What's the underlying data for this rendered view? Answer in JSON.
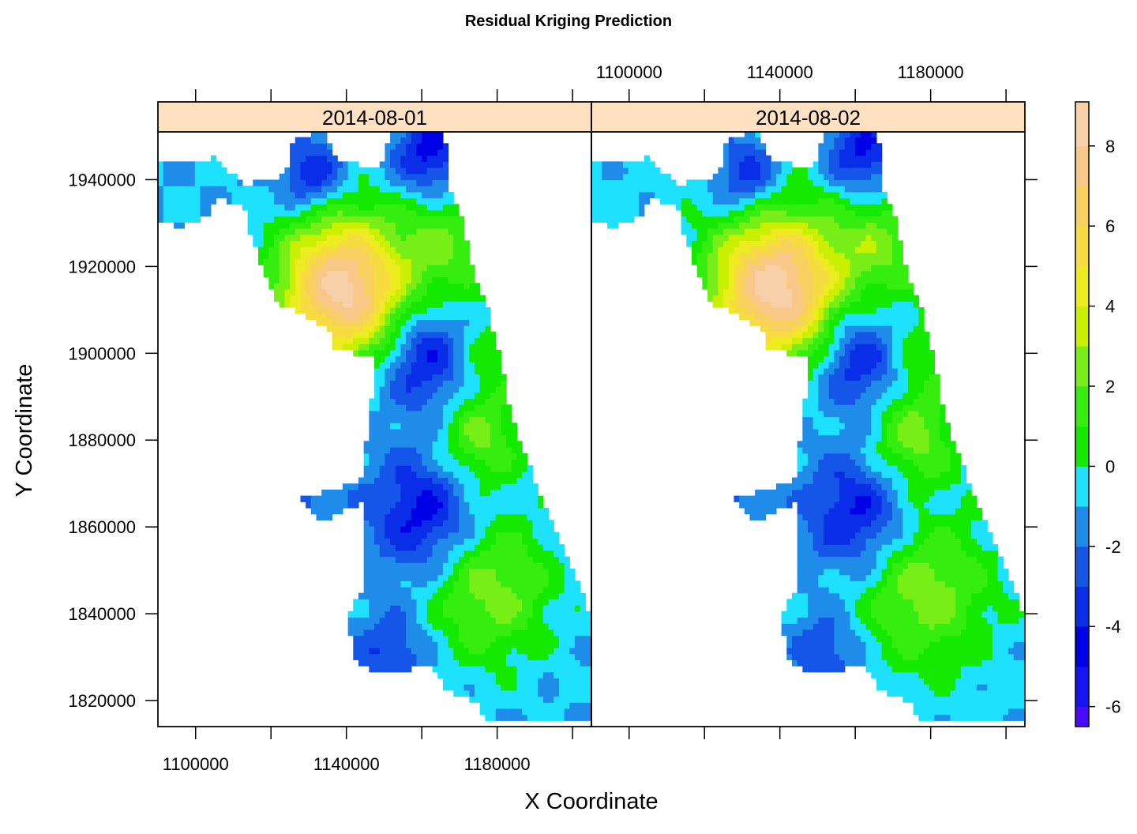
{
  "chart_data": {
    "type": "heatmap",
    "title": "Residual Kriging Prediction",
    "xlabel": "X Coordinate",
    "ylabel": "Y Coordinate",
    "xlim": [
      1090000,
      1205000
    ],
    "ylim": [
      1814000,
      1951000
    ],
    "x_ticks": [
      1100000,
      1140000,
      1180000
    ],
    "x_tick_labels": [
      "1100000",
      "1140000",
      "1180000"
    ],
    "y_ticks": [
      1820000,
      1840000,
      1860000,
      1880000,
      1900000,
      1920000,
      1940000
    ],
    "y_tick_labels": [
      "1820000",
      "1840000",
      "1860000",
      "1880000",
      "1900000",
      "1920000",
      "1940000"
    ],
    "panels": [
      {
        "label": "2014-08-01"
      },
      {
        "label": "2014-08-02"
      }
    ],
    "strip_color": "#ffe0c0",
    "colorbar": {
      "zlim": [
        -6.5,
        9.1
      ],
      "ticks": [
        -6,
        -4,
        -2,
        0,
        2,
        4,
        6,
        8
      ],
      "tick_labels": [
        "-6",
        "-4",
        "-2",
        "0",
        "2",
        "4",
        "6",
        "8"
      ],
      "levels": [
        {
          "from": -6.5,
          "to": -6,
          "color": "#4a0aff"
        },
        {
          "from": -6,
          "to": -5,
          "color": "#1414f4"
        },
        {
          "from": -5,
          "to": -4,
          "color": "#0000e6"
        },
        {
          "from": -4,
          "to": -3,
          "color": "#0a2ee8"
        },
        {
          "from": -3,
          "to": -2,
          "color": "#1556e8"
        },
        {
          "from": -2,
          "to": -1,
          "color": "#1e8ce8"
        },
        {
          "from": -1,
          "to": 0,
          "color": "#1ee0ff"
        },
        {
          "from": 0,
          "to": 1,
          "color": "#14ea00"
        },
        {
          "from": 1,
          "to": 2,
          "color": "#35ee10"
        },
        {
          "from": 2,
          "to": 3,
          "color": "#78ee18"
        },
        {
          "from": 3,
          "to": 4,
          "color": "#c8f000"
        },
        {
          "from": 4,
          "to": 5,
          "color": "#ecec20"
        },
        {
          "from": 5,
          "to": 6,
          "color": "#f6dc40"
        },
        {
          "from": 6,
          "to": 7,
          "color": "#f8d060"
        },
        {
          "from": 7,
          "to": 8,
          "color": "#f8c888"
        },
        {
          "from": 8,
          "to": 9.1,
          "color": "#f8d0a8"
        }
      ]
    },
    "residual_centers": [
      {
        "x": 1139000,
        "y": 1915000,
        "value": 8.5,
        "spread": 12000
      },
      {
        "x": 1161000,
        "y": 1899000,
        "value": -4.6,
        "spread": 8500
      },
      {
        "x": 1161000,
        "y": 1863000,
        "value": -4.7,
        "spread": 10000
      },
      {
        "x": 1162000,
        "y": 1946000,
        "value": -4.6,
        "spread": 6500
      },
      {
        "x": 1131000,
        "y": 1941000,
        "value": -4.2,
        "spread": 6000
      },
      {
        "x": 1178000,
        "y": 1846000,
        "value": 2.6,
        "spread": 12000
      },
      {
        "x": 1167000,
        "y": 1925000,
        "value": 1.8,
        "spread": 9000
      },
      {
        "x": 1175000,
        "y": 1880000,
        "value": 2.4,
        "spread": 8000
      },
      {
        "x": 1178000,
        "y": 1900000,
        "value": 0.8,
        "spread": 8000
      },
      {
        "x": 1152000,
        "y": 1831000,
        "value": -3.3,
        "spread": 6500
      },
      {
        "x": 1132000,
        "y": 1867000,
        "value": -2.2,
        "spread": 6000
      }
    ],
    "residual_background": -1.0,
    "panel_offsets": [
      0,
      0.25
    ]
  }
}
